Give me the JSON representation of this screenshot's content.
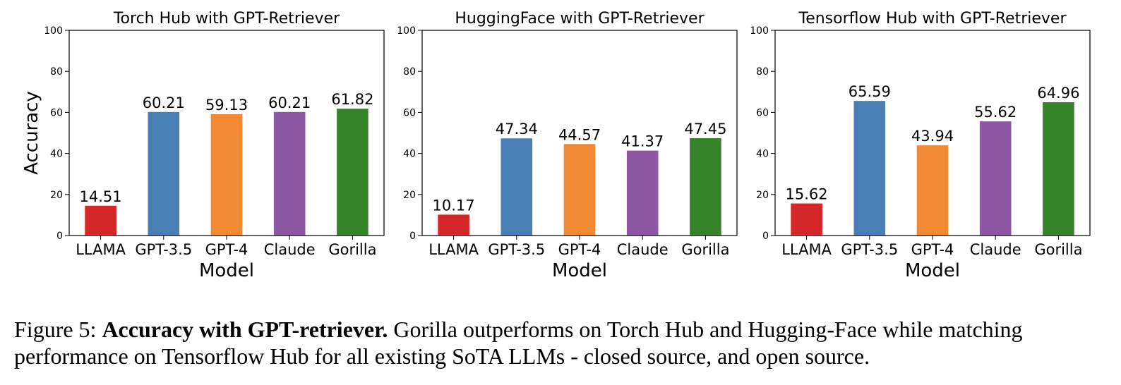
{
  "chart_data": [
    {
      "type": "bar",
      "title": "Torch Hub with GPT-Retriever",
      "xlabel": "Model",
      "ylabel": "Accuracy",
      "categories": [
        "LLAMA",
        "GPT-3.5",
        "GPT-4",
        "Claude",
        "Gorilla"
      ],
      "values": [
        14.51,
        60.21,
        59.13,
        60.21,
        61.82
      ],
      "value_labels": [
        "14.51",
        "60.21",
        "59.13",
        "60.21",
        "61.82"
      ],
      "colors": [
        "#d62728",
        "#4a7fb6",
        "#f28a34",
        "#8c57a3",
        "#35842a"
      ],
      "ylim": [
        0,
        100
      ],
      "yticks": [
        "0",
        "20",
        "40",
        "60",
        "80",
        "100"
      ],
      "grid": false
    },
    {
      "type": "bar",
      "title": "HuggingFace with GPT-Retriever",
      "xlabel": "Model",
      "ylabel": "",
      "categories": [
        "LLAMA",
        "GPT-3.5",
        "GPT-4",
        "Claude",
        "Gorilla"
      ],
      "values": [
        10.17,
        47.34,
        44.57,
        41.37,
        47.45
      ],
      "value_labels": [
        "10.17",
        "47.34",
        "44.57",
        "41.37",
        "47.45"
      ],
      "colors": [
        "#d62728",
        "#4a7fb6",
        "#f28a34",
        "#8c57a3",
        "#35842a"
      ],
      "ylim": [
        0,
        100
      ],
      "yticks": [
        "0",
        "20",
        "40",
        "60",
        "80",
        "100"
      ],
      "grid": false
    },
    {
      "type": "bar",
      "title": "Tensorflow Hub with GPT-Retriever",
      "xlabel": "Model",
      "ylabel": "",
      "categories": [
        "LLAMA",
        "GPT-3.5",
        "GPT-4",
        "Claude",
        "Gorilla"
      ],
      "values": [
        15.62,
        65.59,
        43.94,
        55.62,
        64.96
      ],
      "value_labels": [
        "15.62",
        "65.59",
        "43.94",
        "55.62",
        "64.96"
      ],
      "colors": [
        "#d62728",
        "#4a7fb6",
        "#f28a34",
        "#8c57a3",
        "#35842a"
      ],
      "ylim": [
        0,
        100
      ],
      "yticks": [
        "0",
        "20",
        "40",
        "60",
        "80",
        "100"
      ],
      "grid": false
    }
  ],
  "caption": {
    "label": "Figure 5:",
    "bold": "Accuracy with GPT-retriever.",
    "text": "Gorilla outperforms on Torch Hub and Hugging-Face while matching performance on Tensorflow Hub for all existing SoTA LLMs - closed source, and open source."
  }
}
